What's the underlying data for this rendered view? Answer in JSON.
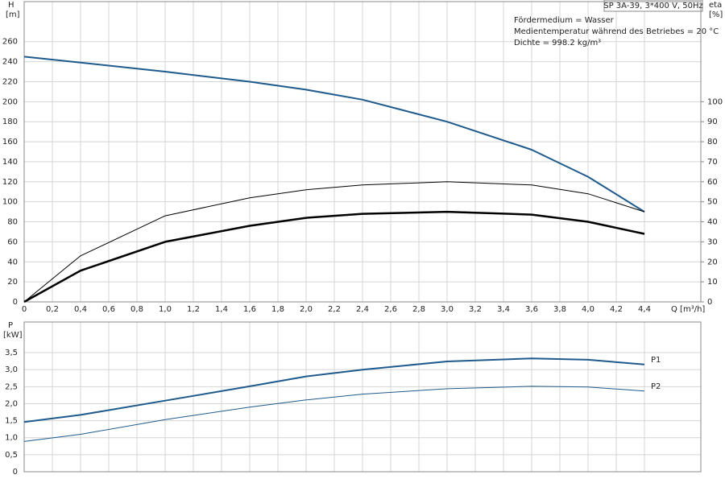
{
  "chart_data": [
    {
      "type": "line",
      "title": "SP 3A-39, 3*400 V, 50Hz",
      "annotations": [
        "Fördermedium = Wasser",
        "Medientemperatur während des Betriebes = 20 °C",
        "Dichte = 998.2 kg/m³"
      ],
      "ylabel": "H",
      "yunit": "[m]",
      "y2label": "eta",
      "y2unit": "[%]",
      "xlabel": "Q [m³/h]",
      "x": [
        0,
        0.4,
        1.0,
        1.6,
        2.0,
        2.4,
        3.0,
        3.6,
        4.0,
        4.4
      ],
      "xlim": [
        0,
        4.8
      ],
      "xticks": [
        0,
        {
          "value": 0.2,
          "label": "0,2"
        },
        {
          "value": 0.4,
          "label": "0,4"
        },
        {
          "value": 0.6,
          "label": "0,6"
        },
        {
          "value": 0.8,
          "label": "0,8"
        },
        {
          "value": 1.0,
          "label": "1,0"
        },
        {
          "value": 1.2,
          "label": "1,2"
        },
        {
          "value": 1.4,
          "label": "1,4"
        },
        {
          "value": 1.6,
          "label": "1,6"
        },
        {
          "value": 1.8,
          "label": "1,8"
        },
        {
          "value": 2.0,
          "label": "2,0"
        },
        {
          "value": 2.2,
          "label": "2,2"
        },
        {
          "value": 2.4,
          "label": "2,4"
        },
        {
          "value": 2.6,
          "label": "2,6"
        },
        {
          "value": 2.8,
          "label": "2,8"
        },
        {
          "value": 3.0,
          "label": "3,0"
        },
        {
          "value": 3.2,
          "label": "3,2"
        },
        {
          "value": 3.4,
          "label": "3,4"
        },
        {
          "value": 3.6,
          "label": "3,6"
        },
        {
          "value": 3.8,
          "label": "3,8"
        },
        {
          "value": 4.0,
          "label": "4,0"
        },
        {
          "value": 4.2,
          "label": "4,2"
        },
        {
          "value": 4.4,
          "label": "4,4"
        }
      ],
      "ylim": [
        0,
        300
      ],
      "yticks": [
        0,
        20,
        40,
        60,
        80,
        100,
        120,
        140,
        160,
        180,
        200,
        220,
        240,
        260
      ],
      "y2lim": [
        0,
        150
      ],
      "y2ticks": [
        0,
        10,
        20,
        30,
        40,
        50,
        60,
        70,
        80,
        90,
        100
      ],
      "grid": true,
      "series": [
        {
          "color": "#1f5a8c",
          "width": 2,
          "values": [
            245,
            239,
            230,
            220,
            212,
            202,
            180,
            152,
            125,
            90
          ]
        },
        {
          "color": "#000000",
          "width": 1,
          "axis": "y2",
          "values": [
            0,
            23,
            43,
            52,
            56,
            58.4,
            60,
            58.4,
            54,
            45
          ]
        },
        {
          "color": "#000000",
          "width": 2.5,
          "axis": "y2",
          "values": [
            0,
            15.6,
            30,
            38,
            42,
            44,
            45,
            43.6,
            40,
            34
          ]
        }
      ]
    },
    {
      "type": "line",
      "ylabel": "P",
      "yunit": "[kW]",
      "x": [
        0,
        0.4,
        1.0,
        1.6,
        2.0,
        2.4,
        3.0,
        3.6,
        4.0,
        4.4
      ],
      "xlim": [
        0,
        4.8
      ],
      "ylim": [
        0,
        4.4
      ],
      "yticks": [
        0,
        {
          "value": 0.5,
          "label": "0,5"
        },
        {
          "value": 1.0,
          "label": "1,0"
        },
        {
          "value": 1.5,
          "label": "1,5"
        },
        {
          "value": 2.0,
          "label": "2,0"
        },
        {
          "value": 2.5,
          "label": "2,5"
        },
        {
          "value": 3.0,
          "label": "3,0"
        },
        {
          "value": 3.5,
          "label": "3,5"
        }
      ],
      "grid": true,
      "series": [
        {
          "name": "P1",
          "color": "#1f5a8c",
          "width": 2,
          "values": [
            1.46,
            1.67,
            2.09,
            2.51,
            2.8,
            3.0,
            3.24,
            3.33,
            3.29,
            3.15
          ]
        },
        {
          "name": "P2",
          "color": "#1f5a8c",
          "width": 1,
          "values": [
            0.89,
            1.1,
            1.53,
            1.9,
            2.11,
            2.28,
            2.44,
            2.51,
            2.49,
            2.37
          ]
        }
      ]
    }
  ]
}
